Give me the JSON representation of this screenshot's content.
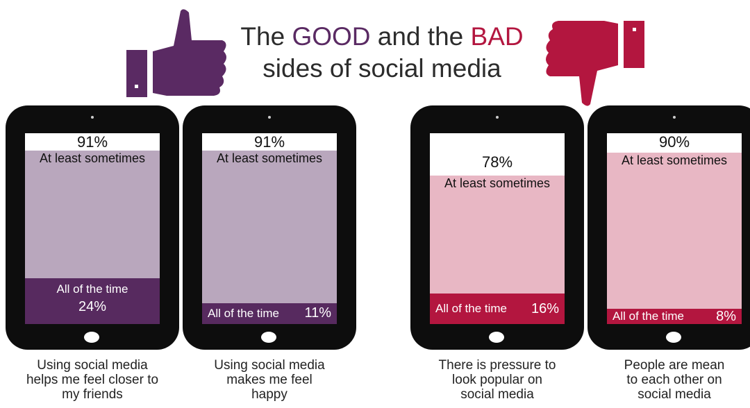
{
  "title": {
    "line1_pre": "The ",
    "good": "GOOD",
    "line1_mid": " and the ",
    "bad": "BAD",
    "line2": "sides of social media"
  },
  "colors": {
    "good_dark": "#572a5f",
    "good_light": "#b9a7bd",
    "bad_dark": "#b3163f",
    "bad_light": "#e8b7c4",
    "thumb_up": "#5a2a63",
    "thumb_down": "#b3163f"
  },
  "chart_data": {
    "type": "bar",
    "categories": [
      "Using social media helps me feel closer to my friends",
      "Using social media makes me feel happy",
      "There is pressure to look popular on social media",
      "People are mean to each other on social media"
    ],
    "series": [
      {
        "name": "At least sometimes",
        "values": [
          91,
          91,
          78,
          90
        ]
      },
      {
        "name": "All of the time",
        "values": [
          24,
          11,
          16,
          8
        ]
      }
    ],
    "ylim": [
      0,
      100
    ],
    "unit": "%"
  },
  "phones": [
    {
      "theme": "good",
      "sometimes_pct": 91,
      "sometimes_text": "91%",
      "sometimes_label": "At least sometimes",
      "always_pct": 24,
      "always_text": "24%",
      "always_label": "All of the time",
      "caption": [
        "Using social media",
        "helps me feel closer to",
        "my friends"
      ]
    },
    {
      "theme": "good",
      "sometimes_pct": 91,
      "sometimes_text": "91%",
      "sometimes_label": "At least sometimes",
      "always_pct": 11,
      "always_text": "11%",
      "always_label": "All of the time",
      "caption": [
        "Using social media",
        "makes me feel",
        "happy"
      ]
    },
    {
      "theme": "bad",
      "sometimes_pct": 78,
      "sometimes_text": "78%",
      "sometimes_label": "At least sometimes",
      "always_pct": 16,
      "always_text": "16%",
      "always_label": "All of the time",
      "caption": [
        "There is pressure to",
        "look popular on",
        "social media"
      ]
    },
    {
      "theme": "bad",
      "sometimes_pct": 90,
      "sometimes_text": "90%",
      "sometimes_label": "At least sometimes",
      "always_pct": 8,
      "always_text": "8%",
      "always_label": "All of the time",
      "caption": [
        "People are mean",
        "to each other on",
        "social media"
      ]
    }
  ]
}
